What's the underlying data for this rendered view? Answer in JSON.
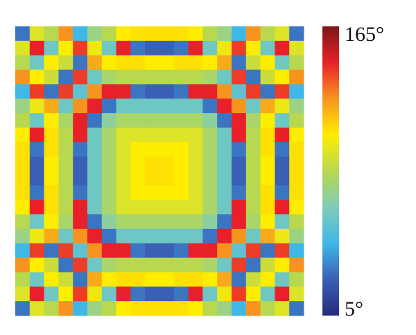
{
  "chart_data": {
    "type": "heatmap",
    "z": [
      [
        30,
        95,
        85,
        125,
        45,
        75,
        85,
        105,
        108,
        108,
        108,
        108,
        105,
        85,
        75,
        45,
        125,
        85,
        95,
        30
      ],
      [
        95,
        145,
        60,
        105,
        140,
        100,
        60,
        145,
        30,
        25,
        25,
        30,
        145,
        60,
        100,
        140,
        105,
        60,
        145,
        95
      ],
      [
        85,
        60,
        105,
        90,
        30,
        120,
        105,
        108,
        108,
        105,
        105,
        108,
        108,
        105,
        120,
        30,
        90,
        105,
        60,
        85
      ],
      [
        125,
        105,
        90,
        30,
        140,
        60,
        80,
        85,
        85,
        85,
        85,
        85,
        85,
        80,
        60,
        140,
        30,
        90,
        105,
        125
      ],
      [
        45,
        140,
        30,
        140,
        55,
        125,
        145,
        145,
        30,
        25,
        25,
        30,
        145,
        145,
        125,
        55,
        140,
        30,
        140,
        45
      ],
      [
        75,
        100,
        120,
        60,
        125,
        145,
        30,
        60,
        60,
        60,
        60,
        60,
        60,
        30,
        145,
        125,
        60,
        120,
        100,
        75
      ],
      [
        85,
        60,
        105,
        80,
        145,
        30,
        70,
        80,
        80,
        80,
        80,
        80,
        80,
        70,
        30,
        145,
        80,
        105,
        60,
        85
      ],
      [
        105,
        145,
        108,
        85,
        145,
        60,
        80,
        95,
        95,
        95,
        95,
        95,
        95,
        80,
        60,
        145,
        85,
        108,
        145,
        105
      ],
      [
        108,
        30,
        108,
        85,
        30,
        60,
        80,
        95,
        105,
        105,
        105,
        105,
        95,
        80,
        60,
        30,
        85,
        108,
        30,
        108
      ],
      [
        108,
        25,
        105,
        85,
        25,
        60,
        80,
        95,
        105,
        108,
        108,
        105,
        95,
        80,
        60,
        25,
        85,
        105,
        25,
        108
      ],
      [
        108,
        25,
        105,
        85,
        25,
        60,
        80,
        95,
        105,
        108,
        108,
        105,
        95,
        80,
        60,
        25,
        85,
        105,
        25,
        108
      ],
      [
        108,
        30,
        108,
        85,
        30,
        60,
        80,
        95,
        105,
        105,
        105,
        105,
        95,
        80,
        60,
        30,
        85,
        108,
        30,
        108
      ],
      [
        105,
        145,
        108,
        85,
        145,
        60,
        80,
        95,
        95,
        95,
        95,
        95,
        95,
        80,
        60,
        145,
        85,
        108,
        145,
        105
      ],
      [
        85,
        60,
        105,
        80,
        145,
        30,
        70,
        80,
        80,
        80,
        80,
        80,
        80,
        70,
        30,
        145,
        80,
        105,
        60,
        85
      ],
      [
        75,
        100,
        120,
        60,
        125,
        145,
        30,
        60,
        60,
        60,
        60,
        60,
        60,
        30,
        145,
        125,
        60,
        120,
        100,
        75
      ],
      [
        45,
        140,
        30,
        140,
        55,
        125,
        145,
        145,
        30,
        25,
        25,
        30,
        145,
        145,
        125,
        55,
        140,
        30,
        140,
        45
      ],
      [
        125,
        105,
        90,
        30,
        140,
        60,
        80,
        85,
        85,
        85,
        85,
        85,
        85,
        80,
        60,
        140,
        30,
        90,
        105,
        125
      ],
      [
        85,
        60,
        105,
        90,
        30,
        120,
        105,
        108,
        108,
        105,
        105,
        108,
        108,
        105,
        120,
        30,
        90,
        105,
        60,
        85
      ],
      [
        95,
        145,
        60,
        105,
        140,
        100,
        60,
        145,
        30,
        25,
        25,
        30,
        145,
        60,
        100,
        140,
        105,
        60,
        145,
        95
      ],
      [
        30,
        95,
        85,
        125,
        45,
        75,
        85,
        105,
        108,
        108,
        108,
        108,
        105,
        85,
        75,
        45,
        125,
        85,
        95,
        30
      ]
    ],
    "zlim": [
      5,
      165
    ],
    "zticks": [
      {
        "value": 5,
        "label": "5°"
      },
      {
        "value": 165,
        "label": "165°"
      }
    ],
    "colormap": [
      "#252c7c",
      "#3a5fb5",
      "#3fb8e8",
      "#7fccb8",
      "#b8d84f",
      "#ffed00",
      "#f79420",
      "#e8202a",
      "#7d1718"
    ]
  }
}
